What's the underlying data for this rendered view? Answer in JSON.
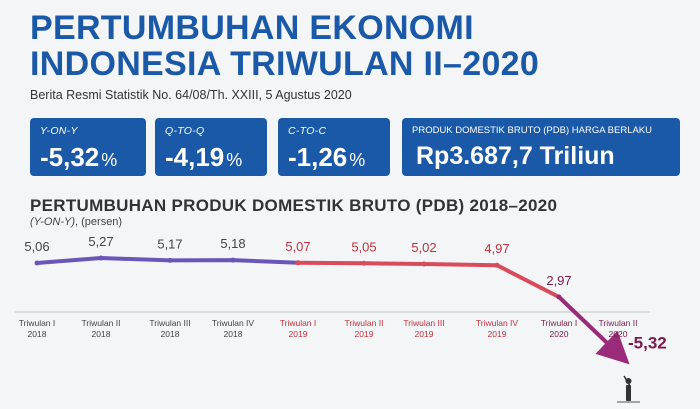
{
  "header": {
    "title_line1": "PERTUMBUHAN EKONOMI",
    "title_line2": "INDONESIA TRIWULAN II–2020",
    "subtitle": "Berita Resmi Statistik No. 64/08/Th. XXIII, 5 Agustus 2020"
  },
  "cards": [
    {
      "label": "Y-ON-Y",
      "value": "-5,32",
      "unit": "%"
    },
    {
      "label": "Q-TO-Q",
      "value": "-4,19",
      "unit": "%"
    },
    {
      "label": "C-TO-C",
      "value": "-1,26",
      "unit": "%"
    },
    {
      "label": "PRODUK DOMESTIK BRUTO (PDB) HARGA BERLAKU",
      "value": "Rp3.687,7 Triliun",
      "unit": ""
    }
  ],
  "colors": {
    "brand_blue": "#1a58a8",
    "series_2018": "#6a56b8",
    "series_2019": "#d94a5a",
    "series_2020": "#9a2a7a",
    "label_2019": "#c0303c",
    "label_2020": "#7a1a4a"
  },
  "chart_data": {
    "type": "line",
    "title": "PERTUMBUHAN PRODUK DOMESTIK BRUTO (PDB) 2018–2020",
    "subtitle_italic": "(Y-ON-Y)",
    "subtitle_rest": ", (persen)",
    "categories": [
      [
        "Triwulan I",
        "2018"
      ],
      [
        "Triwulan II",
        "2018"
      ],
      [
        "Triwulan III",
        "2018"
      ],
      [
        "Triwulan IV",
        "2018"
      ],
      [
        "Triwulan I",
        "2019"
      ],
      [
        "Triwulan II",
        "2019"
      ],
      [
        "Triwulan III",
        "2019"
      ],
      [
        "Triwulan IV",
        "2019"
      ],
      [
        "Triwulan I",
        "2020"
      ],
      [
        "Triwulan II",
        "2020"
      ]
    ],
    "values": [
      5.06,
      5.27,
      5.17,
      5.18,
      5.07,
      5.05,
      5.02,
      4.97,
      2.97,
      -5.32
    ],
    "labels": [
      "5,06",
      "5,27",
      "5,17",
      "5,18",
      "5,07",
      "5,05",
      "5,02",
      "4,97",
      "2,97",
      "-5,32"
    ],
    "years": [
      "2018",
      "2018",
      "2018",
      "2018",
      "2019",
      "2019",
      "2019",
      "2019",
      "2020",
      "2020"
    ]
  }
}
